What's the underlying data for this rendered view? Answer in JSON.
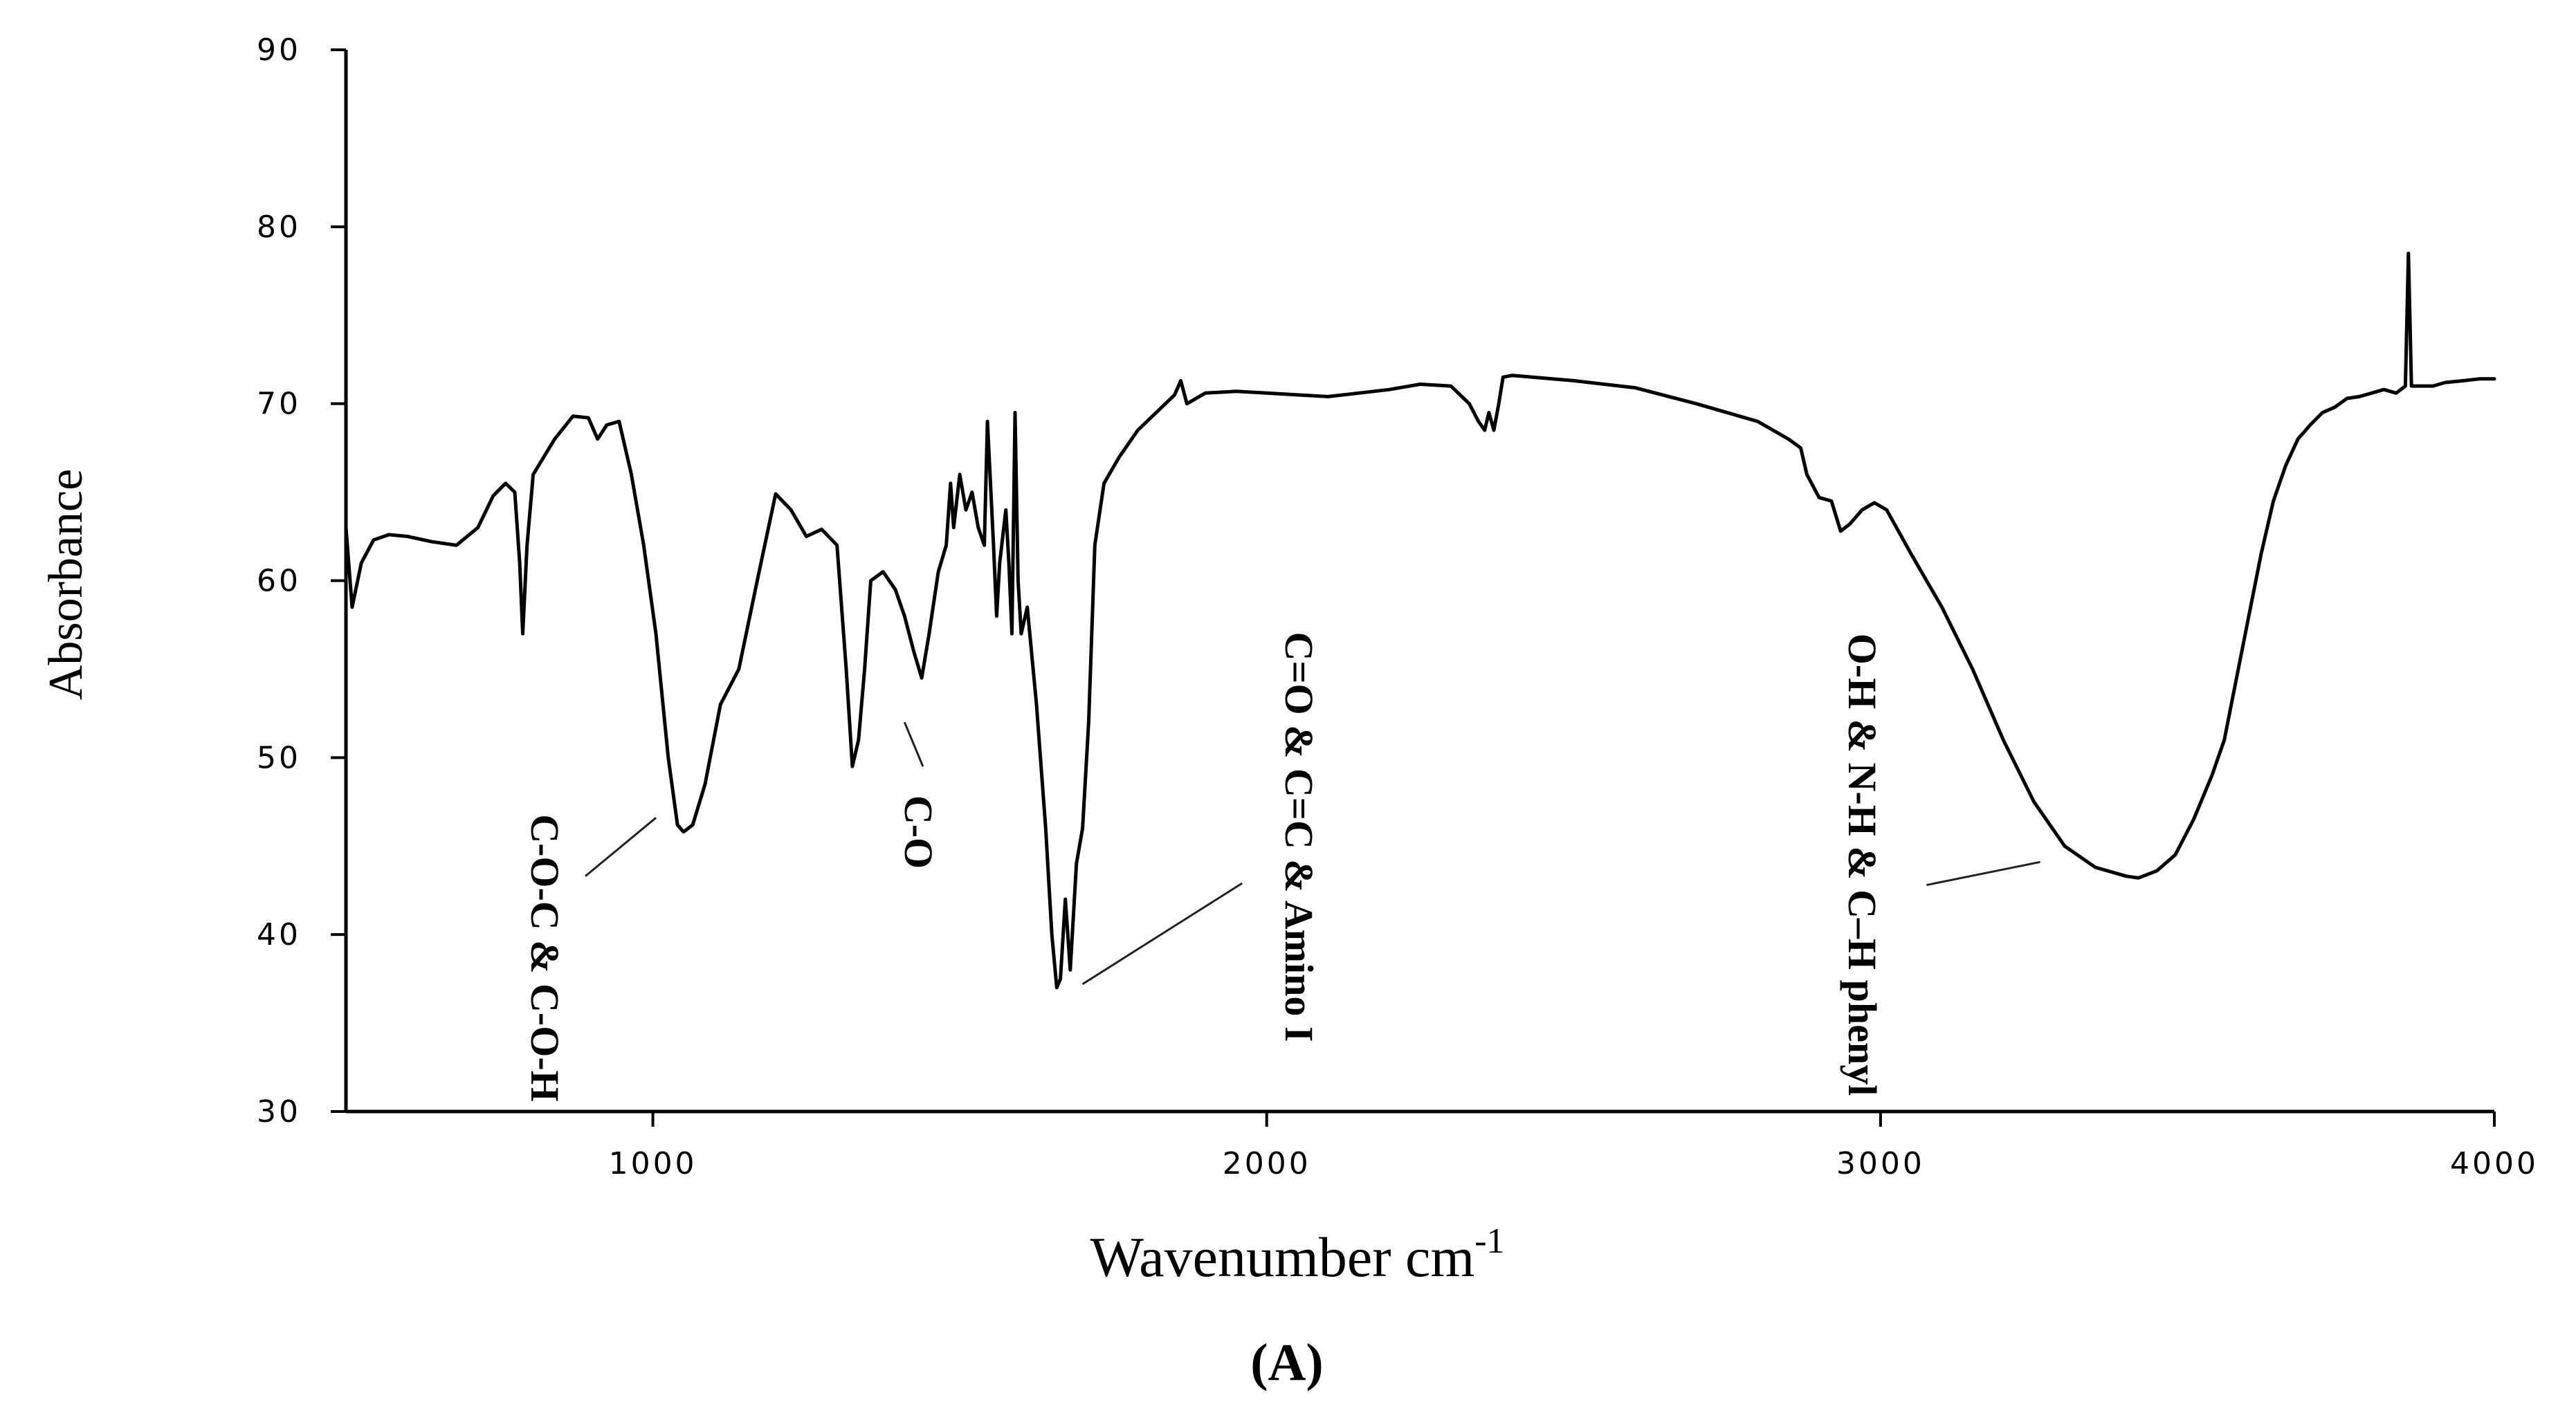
{
  "chart_data": {
    "type": "line",
    "title": "",
    "panel_label": "(A)",
    "xlabel": "Wavenumber cm",
    "xlabel_superscript": "-1",
    "ylabel": "Absorbance",
    "xlim": [
      500,
      4000
    ],
    "ylim": [
      30,
      90
    ],
    "xticks": [
      1000,
      2000,
      3000,
      4000
    ],
    "yticks": [
      30,
      40,
      50,
      60,
      70,
      80,
      90
    ],
    "grid": false,
    "legend": "none",
    "series": [
      {
        "name": "spectrum",
        "color": "#000000",
        "points": [
          [
            500,
            63.0
          ],
          [
            510,
            58.5
          ],
          [
            525,
            61.0
          ],
          [
            545,
            62.3
          ],
          [
            570,
            62.6
          ],
          [
            600,
            62.5
          ],
          [
            640,
            62.2
          ],
          [
            680,
            62.0
          ],
          [
            715,
            63.0
          ],
          [
            740,
            64.8
          ],
          [
            760,
            65.5
          ],
          [
            775,
            65.0
          ],
          [
            783,
            61.0
          ],
          [
            788,
            57.0
          ],
          [
            795,
            62.0
          ],
          [
            805,
            66.0
          ],
          [
            840,
            68.0
          ],
          [
            870,
            69.3
          ],
          [
            895,
            69.2
          ],
          [
            910,
            68.0
          ],
          [
            925,
            68.8
          ],
          [
            945,
            69.0
          ],
          [
            965,
            66.0
          ],
          [
            985,
            62.0
          ],
          [
            1005,
            57.0
          ],
          [
            1025,
            50.0
          ],
          [
            1040,
            46.2
          ],
          [
            1050,
            45.8
          ],
          [
            1065,
            46.2
          ],
          [
            1085,
            48.5
          ],
          [
            1110,
            53.0
          ],
          [
            1140,
            55.0
          ],
          [
            1170,
            60.0
          ],
          [
            1200,
            64.9
          ],
          [
            1225,
            64.0
          ],
          [
            1250,
            62.5
          ],
          [
            1275,
            62.9
          ],
          [
            1300,
            62.0
          ],
          [
            1315,
            55.0
          ],
          [
            1325,
            49.5
          ],
          [
            1335,
            51.0
          ],
          [
            1345,
            55.0
          ],
          [
            1355,
            60.0
          ],
          [
            1375,
            60.5
          ],
          [
            1395,
            59.5
          ],
          [
            1410,
            58.0
          ],
          [
            1425,
            56.0
          ],
          [
            1438,
            54.5
          ],
          [
            1450,
            57.0
          ],
          [
            1465,
            60.5
          ],
          [
            1478,
            62.0
          ],
          [
            1485,
            65.5
          ],
          [
            1490,
            63.0
          ],
          [
            1500,
            66.0
          ],
          [
            1510,
            64.0
          ],
          [
            1520,
            65.0
          ],
          [
            1530,
            63.0
          ],
          [
            1540,
            62.0
          ],
          [
            1545,
            69.0
          ],
          [
            1555,
            62.0
          ],
          [
            1560,
            58.0
          ],
          [
            1565,
            61.0
          ],
          [
            1575,
            64.0
          ],
          [
            1580,
            61.0
          ],
          [
            1585,
            57.0
          ],
          [
            1590,
            69.5
          ],
          [
            1595,
            60.0
          ],
          [
            1600,
            57.0
          ],
          [
            1610,
            58.5
          ],
          [
            1625,
            53.0
          ],
          [
            1640,
            46.0
          ],
          [
            1650,
            40.0
          ],
          [
            1658,
            37.0
          ],
          [
            1664,
            37.5
          ],
          [
            1672,
            42.0
          ],
          [
            1680,
            38.0
          ],
          [
            1690,
            44.0
          ],
          [
            1700,
            46.0
          ],
          [
            1710,
            52.0
          ],
          [
            1720,
            62.0
          ],
          [
            1735,
            65.5
          ],
          [
            1760,
            67.0
          ],
          [
            1790,
            68.5
          ],
          [
            1820,
            69.5
          ],
          [
            1850,
            70.5
          ],
          [
            1860,
            71.3
          ],
          [
            1870,
            70.0
          ],
          [
            1900,
            70.6
          ],
          [
            1950,
            70.7
          ],
          [
            2000,
            70.6
          ],
          [
            2050,
            70.5
          ],
          [
            2100,
            70.4
          ],
          [
            2150,
            70.6
          ],
          [
            2200,
            70.8
          ],
          [
            2250,
            71.1
          ],
          [
            2300,
            71.0
          ],
          [
            2330,
            70.0
          ],
          [
            2345,
            69.0
          ],
          [
            2355,
            68.5
          ],
          [
            2362,
            69.5
          ],
          [
            2370,
            68.5
          ],
          [
            2378,
            70.0
          ],
          [
            2385,
            71.5
          ],
          [
            2400,
            71.6
          ],
          [
            2500,
            71.3
          ],
          [
            2600,
            70.9
          ],
          [
            2700,
            70.0
          ],
          [
            2800,
            69.0
          ],
          [
            2850,
            68.0
          ],
          [
            2870,
            67.5
          ],
          [
            2880,
            66.0
          ],
          [
            2900,
            64.7
          ],
          [
            2920,
            64.5
          ],
          [
            2935,
            62.8
          ],
          [
            2950,
            63.2
          ],
          [
            2970,
            64.0
          ],
          [
            2990,
            64.4
          ],
          [
            3010,
            64.0
          ],
          [
            3050,
            61.5
          ],
          [
            3100,
            58.5
          ],
          [
            3150,
            55.0
          ],
          [
            3200,
            51.0
          ],
          [
            3250,
            47.5
          ],
          [
            3300,
            45.0
          ],
          [
            3350,
            43.8
          ],
          [
            3400,
            43.3
          ],
          [
            3420,
            43.2
          ],
          [
            3450,
            43.6
          ],
          [
            3480,
            44.5
          ],
          [
            3510,
            46.5
          ],
          [
            3540,
            49.0
          ],
          [
            3560,
            51.0
          ],
          [
            3580,
            54.5
          ],
          [
            3600,
            58.0
          ],
          [
            3620,
            61.5
          ],
          [
            3640,
            64.5
          ],
          [
            3660,
            66.5
          ],
          [
            3680,
            68.0
          ],
          [
            3700,
            68.8
          ],
          [
            3720,
            69.5
          ],
          [
            3740,
            69.8
          ],
          [
            3760,
            70.3
          ],
          [
            3780,
            70.4
          ],
          [
            3800,
            70.6
          ],
          [
            3820,
            70.8
          ],
          [
            3840,
            70.6
          ],
          [
            3855,
            71.0
          ],
          [
            3860,
            78.5
          ],
          [
            3865,
            71.0
          ],
          [
            3880,
            71.0
          ],
          [
            3900,
            71.0
          ],
          [
            3920,
            71.2
          ],
          [
            3950,
            71.3
          ],
          [
            3975,
            71.4
          ],
          [
            4000,
            71.4
          ]
        ]
      }
    ],
    "annotations": [
      {
        "text": "C-O-C & C-O-H",
        "line": {
          "from": [
            890,
            43.3
          ],
          "to": [
            1005,
            46.6
          ]
        }
      },
      {
        "text": "C-O",
        "line": {
          "from": [
            1410,
            52.0
          ],
          "to": [
            1440,
            49.5
          ]
        }
      },
      {
        "text": "C=O & C=C & Amino I",
        "line": {
          "from": [
            1700,
            37.2
          ],
          "to": [
            1960,
            42.9
          ]
        }
      },
      {
        "text": "O-H & N-H & C–H phenyl",
        "line": {
          "from": [
            3075,
            42.8
          ],
          "to": [
            3260,
            44.1
          ]
        }
      }
    ]
  }
}
